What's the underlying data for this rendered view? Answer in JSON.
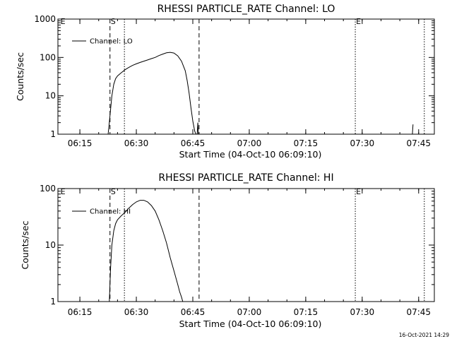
{
  "chart_data": [
    {
      "type": "line",
      "title": "RHESSI PARTICLE_RATE Channel: LO",
      "xlabel": "Start Time (04-Oct-10 06:09:10)",
      "ylabel": "Counts/sec",
      "yscale": "log",
      "xlim": [
        "06:09:10",
        "07:49:10"
      ],
      "ylim": [
        1,
        1000
      ],
      "x_ticks": [
        "06:15",
        "06:30",
        "06:45",
        "07:00",
        "07:15",
        "07:30",
        "07:45"
      ],
      "y_ticks": [
        "1",
        "10",
        "100",
        "1000"
      ],
      "legend": {
        "position": "top-left",
        "entries": [
          "Channel: LO"
        ]
      },
      "markers": [
        {
          "label": "S",
          "time": "06:23:00",
          "style": "dashed"
        },
        {
          "label": "",
          "time": "06:26:50",
          "style": "dotted"
        },
        {
          "label": "",
          "time": "06:46:40",
          "style": "dashed"
        },
        {
          "label": "E",
          "time": "07:28:10",
          "style": "dotted"
        },
        {
          "label": "",
          "time": "07:46:30",
          "style": "dotted"
        },
        {
          "label": "E",
          "time": "06:09:40",
          "style": "none"
        }
      ],
      "series": [
        {
          "name": "Channel: LO",
          "segments": [
            {
              "x": [
                "06:22:30",
                "06:23:00",
                "06:23:30",
                "06:24:00",
                "06:24:30",
                "06:25:00",
                "06:26:00",
                "06:27:00",
                "06:28:00",
                "06:29:00",
                "06:30:00",
                "06:31:00",
                "06:32:00",
                "06:33:00",
                "06:34:00",
                "06:35:00",
                "06:36:00",
                "06:37:00",
                "06:38:00",
                "06:39:00",
                "06:40:00",
                "06:41:00",
                "06:42:00",
                "06:43:00",
                "06:43:30",
                "06:44:00",
                "06:44:30",
                "06:45:00",
                "06:45:30",
                "06:45:50"
              ],
              "y": [
                1.0,
                3.0,
                10,
                20,
                28,
                33,
                40,
                48,
                55,
                62,
                68,
                74,
                80,
                86,
                93,
                100,
                112,
                122,
                132,
                136,
                130,
                110,
                80,
                45,
                25,
                12,
                5,
                2.2,
                1.2,
                1.0
              ]
            },
            {
              "x": [
                "06:46:10",
                "06:46:20",
                "06:46:30"
              ],
              "y": [
                1.0,
                2.0,
                1.0
              ]
            },
            {
              "x": [
                "07:43:20",
                "07:43:30"
              ],
              "y": [
                1.0,
                1.8
              ]
            }
          ]
        }
      ]
    },
    {
      "type": "line",
      "title": "RHESSI PARTICLE_RATE Channel: HI",
      "xlabel": "Start Time (04-Oct-10 06:09:10)",
      "ylabel": "Counts/sec",
      "yscale": "log",
      "xlim": [
        "06:09:10",
        "07:49:10"
      ],
      "ylim": [
        1,
        100
      ],
      "x_ticks": [
        "06:15",
        "06:30",
        "06:45",
        "07:00",
        "07:15",
        "07:30",
        "07:45"
      ],
      "y_ticks": [
        "1",
        "10",
        "100"
      ],
      "legend": {
        "position": "top-left",
        "entries": [
          "Channel: HI"
        ]
      },
      "markers": [
        {
          "label": "S",
          "time": "06:23:00",
          "style": "dashed"
        },
        {
          "label": "",
          "time": "06:26:50",
          "style": "dotted"
        },
        {
          "label": "",
          "time": "06:46:40",
          "style": "dashed"
        },
        {
          "label": "E",
          "time": "07:28:10",
          "style": "dotted"
        },
        {
          "label": "",
          "time": "07:46:30",
          "style": "dotted"
        },
        {
          "label": "E",
          "time": "06:09:40",
          "style": "none"
        }
      ],
      "series": [
        {
          "name": "Channel: HI",
          "segments": [
            {
              "x": [
                "06:22:50",
                "06:23:10",
                "06:23:30",
                "06:24:00",
                "06:24:30",
                "06:25:00",
                "06:26:00",
                "06:27:00",
                "06:28:00",
                "06:29:00",
                "06:30:00",
                "06:31:00",
                "06:32:00",
                "06:33:00",
                "06:34:00",
                "06:35:00",
                "06:36:00",
                "06:37:00",
                "06:38:00",
                "06:39:00",
                "06:40:00",
                "06:41:00",
                "06:41:30",
                "06:42:00",
                "06:42:20"
              ],
              "y": [
                1.0,
                4.0,
                10,
                18,
                24,
                28,
                33,
                38,
                45,
                52,
                58,
                62,
                62,
                58,
                50,
                40,
                28,
                18,
                11,
                6,
                3.5,
                2.0,
                1.5,
                1.2,
                1.0
              ]
            }
          ]
        }
      ]
    }
  ],
  "footer": {
    "timestamp": "16-Oct-2021 14:29"
  }
}
